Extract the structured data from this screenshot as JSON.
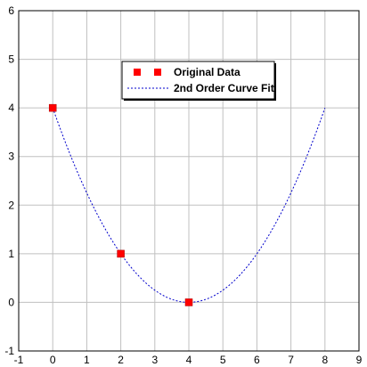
{
  "chart_data": {
    "type": "scatter",
    "title": "",
    "xlabel": "",
    "ylabel": "",
    "xlim": [
      -1,
      9
    ],
    "ylim": [
      -1,
      6
    ],
    "xticks": [
      "-1",
      "0",
      "1",
      "2",
      "3",
      "4",
      "5",
      "6",
      "7",
      "8",
      "9"
    ],
    "yticks": [
      "-1",
      "0",
      "1",
      "2",
      "3",
      "4",
      "5",
      "6"
    ],
    "grid": true,
    "legend_position": "top-center",
    "series": [
      {
        "name": "Original Data",
        "kind": "markers",
        "color": "#ff0000",
        "x": [
          0,
          2,
          4
        ],
        "y": [
          4,
          1,
          0
        ]
      },
      {
        "name": "2nd Order Curve Fit",
        "kind": "dashed-line",
        "color": "#0000cc",
        "equation_coefficients": [
          0.25,
          -2,
          4
        ],
        "x_range": [
          0,
          8
        ]
      }
    ]
  }
}
